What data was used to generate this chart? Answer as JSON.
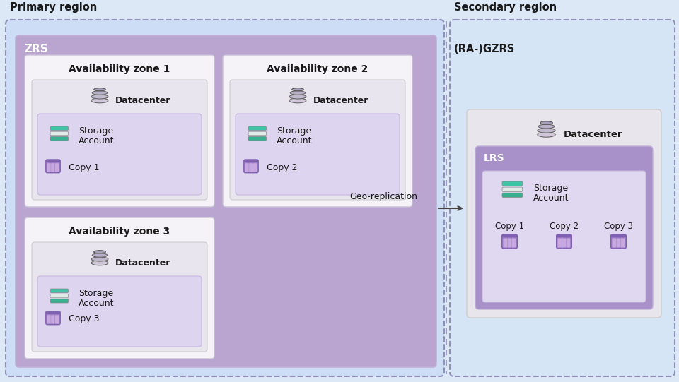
{
  "bg_color": "#dce8f5",
  "primary_region_label": "Primary region",
  "secondary_region_label": "Secondary region",
  "zrs_label": "ZRS",
  "ra_gzrs_label": "(RA-)GZRS",
  "lrs_label": "LRS",
  "datacenter_label": "Datacenter",
  "storage_account_label": [
    "Storage",
    "Account"
  ],
  "geo_replication_label": "Geo-replication",
  "availability_zones": [
    "Availability zone 1",
    "Availability zone 2",
    "Availability zone 3"
  ],
  "copy_labels_primary": [
    "Copy 1",
    "Copy 2",
    "Copy 3"
  ],
  "copy_labels_secondary": [
    "Copy 1",
    "Copy 2",
    "Copy 3"
  ],
  "color_outer_bg": "#dce8f5",
  "color_primary_bg": "#ccddf5",
  "color_secondary_bg": "#d5e5f5",
  "color_zrs_box": "#b9a5d0",
  "color_az_box_bg": "#c8b8e0",
  "color_az_border": "#b8a8d0",
  "color_datacenter_box": "#e4e0ec",
  "color_storage_inner": "#ddd5ef",
  "color_lrs_box": "#a890c8",
  "color_lrs_inner": "#e0d8f0",
  "color_sec_datacenter_box": "#e8e5ec",
  "teal1": "#40c4a8",
  "teal2": "#38b090",
  "teal3": "#e0ebe8",
  "purple_dark": "#8060b0",
  "purple_mid": "#a080c8",
  "purple_light": "#c8a8e0",
  "white": "#ffffff",
  "black": "#1a1a1a",
  "gray_text": "#444444",
  "dashed_border_color": "#9090b8",
  "arrow_color": "#444444"
}
